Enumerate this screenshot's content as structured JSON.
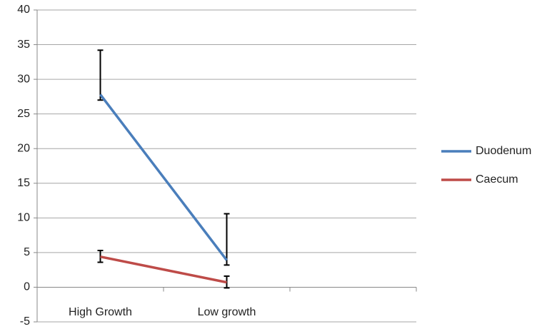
{
  "chart_data": {
    "type": "line",
    "categories": [
      "High Growth",
      "Low growth",
      null
    ],
    "series": [
      {
        "name": "Duodenum",
        "color": "#4a7ebb",
        "values": [
          27.8,
          3.9,
          null
        ],
        "errors_plus": [
          6.4,
          6.7,
          null
        ],
        "errors_minus": [
          0.8,
          0.7,
          null
        ]
      },
      {
        "name": "Caecum",
        "color": "#be4b48",
        "values": [
          4.4,
          0.7,
          null
        ],
        "errors_plus": [
          0.9,
          0.9,
          null
        ],
        "errors_minus": [
          0.8,
          0.8,
          null
        ]
      }
    ],
    "ylim": [
      -5,
      40
    ],
    "yticks": [
      -5,
      0,
      5,
      10,
      15,
      20,
      25,
      30,
      35,
      40
    ],
    "grid": true,
    "legend": "right"
  }
}
